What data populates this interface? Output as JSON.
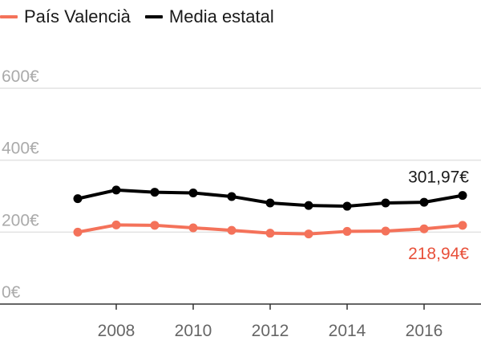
{
  "chart_data": {
    "type": "line",
    "x": [
      2007,
      2008,
      2009,
      2010,
      2011,
      2012,
      2013,
      2014,
      2015,
      2016,
      2017
    ],
    "series": [
      {
        "name": "Media estatal",
        "color": "#000000",
        "values": [
          293,
          317,
          311,
          309,
          299,
          281,
          274,
          272,
          281,
          283,
          301.97
        ],
        "end_label": "301,97€"
      },
      {
        "name": "País Valencià",
        "color": "#f4725a",
        "values": [
          200,
          220,
          219,
          212,
          205,
          197,
          195,
          202,
          203,
          209,
          218.94
        ],
        "end_label": "218,94€"
      }
    ],
    "y_ticks": [
      "0€",
      "200€",
      "400€",
      "600€"
    ],
    "y_tick_values": [
      0,
      200,
      400,
      600
    ],
    "x_tick_values": [
      2008,
      2010,
      2012,
      2014,
      2016
    ],
    "x_tick_labels": [
      "2008",
      "2010",
      "2012",
      "2014",
      "2016"
    ],
    "ylim": [
      0,
      600
    ],
    "xlim": [
      2007,
      2017
    ],
    "grid": true,
    "legend": "top-left",
    "end_label_colors": [
      "#1a1a1a",
      "#e8503a"
    ]
  }
}
